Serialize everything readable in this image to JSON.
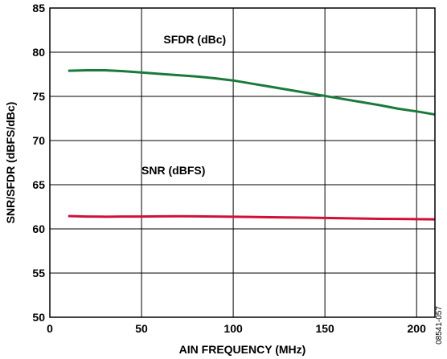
{
  "figure_id": "08541-057",
  "colors": {
    "sfdr": "#1a7a3c",
    "snr": "#d0103a",
    "grid": "#000000",
    "background": "#ffffff"
  },
  "chart_data": {
    "type": "line",
    "title": "",
    "xlabel": "AIN FREQUENCY (MHz)",
    "ylabel": "SNR/SFDR (dBFS/dBc)",
    "xlim": [
      0,
      210
    ],
    "ylim": [
      50,
      85
    ],
    "grid": true,
    "x_ticks": [
      0,
      50,
      100,
      150,
      200
    ],
    "y_ticks": [
      50,
      55,
      60,
      65,
      70,
      75,
      80,
      85
    ],
    "series": [
      {
        "name": "SFDR (dBc)",
        "color": "#1a7a3c",
        "x": [
          10,
          20,
          30,
          40,
          50,
          60,
          70,
          80,
          90,
          100,
          110,
          120,
          130,
          140,
          150,
          160,
          170,
          180,
          190,
          200,
          210
        ],
        "y": [
          77.9,
          77.95,
          77.95,
          77.85,
          77.7,
          77.55,
          77.4,
          77.25,
          77.05,
          76.8,
          76.45,
          76.1,
          75.75,
          75.4,
          75.05,
          74.7,
          74.35,
          74.0,
          73.6,
          73.3,
          72.95
        ]
      },
      {
        "name": "SNR (dBFS)",
        "color": "#d0103a",
        "x": [
          10,
          20,
          30,
          40,
          50,
          60,
          70,
          80,
          90,
          100,
          110,
          120,
          130,
          140,
          150,
          160,
          170,
          180,
          190,
          200,
          210
        ],
        "y": [
          61.45,
          61.4,
          61.38,
          61.4,
          61.4,
          61.42,
          61.43,
          61.42,
          61.4,
          61.38,
          61.35,
          61.32,
          61.3,
          61.27,
          61.24,
          61.2,
          61.17,
          61.14,
          61.12,
          61.1,
          61.08
        ]
      }
    ]
  }
}
